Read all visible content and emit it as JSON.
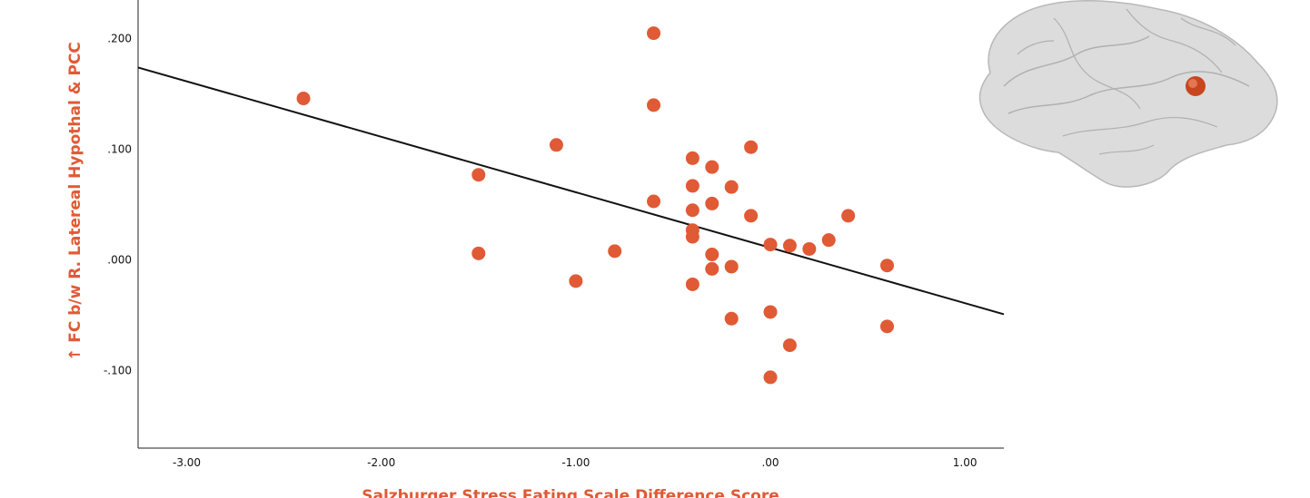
{
  "chart_data": {
    "type": "scatter",
    "xlabel": "Salzburger Stress Eating Scale Difference Score",
    "ylabel": "↑ FC b/w R. Latereal Hypothal & PCC",
    "xlim": [
      -3.25,
      1.2
    ],
    "ylim": [
      -0.17,
      0.235
    ],
    "x_ticks": [
      -3.0,
      -2.0,
      -1.0,
      0.0,
      1.0
    ],
    "x_tick_labels": [
      "-3.00",
      "-2.00",
      "-1.00",
      ".00",
      "1.00"
    ],
    "y_ticks": [
      -0.1,
      0.0,
      0.1,
      0.2
    ],
    "y_tick_labels": [
      "-.100",
      ".000",
      ".100",
      ".200"
    ],
    "grid": false,
    "points": [
      {
        "x": -2.4,
        "y": 0.146
      },
      {
        "x": -1.5,
        "y": 0.077
      },
      {
        "x": -1.5,
        "y": 0.006
      },
      {
        "x": -1.1,
        "y": 0.104
      },
      {
        "x": -1.0,
        "y": -0.019
      },
      {
        "x": -0.8,
        "y": 0.008
      },
      {
        "x": -0.6,
        "y": 0.205
      },
      {
        "x": -0.6,
        "y": 0.14
      },
      {
        "x": -0.6,
        "y": 0.053
      },
      {
        "x": -0.4,
        "y": 0.092
      },
      {
        "x": -0.4,
        "y": 0.067
      },
      {
        "x": -0.4,
        "y": 0.045
      },
      {
        "x": -0.4,
        "y": 0.027
      },
      {
        "x": -0.4,
        "y": 0.021
      },
      {
        "x": -0.4,
        "y": -0.022
      },
      {
        "x": -0.3,
        "y": 0.084
      },
      {
        "x": -0.3,
        "y": 0.051
      },
      {
        "x": -0.3,
        "y": 0.005
      },
      {
        "x": -0.3,
        "y": -0.008
      },
      {
        "x": -0.2,
        "y": 0.066
      },
      {
        "x": -0.2,
        "y": -0.006
      },
      {
        "x": -0.2,
        "y": -0.053
      },
      {
        "x": -0.1,
        "y": 0.102
      },
      {
        "x": -0.1,
        "y": 0.04
      },
      {
        "x": 0.0,
        "y": 0.014
      },
      {
        "x": 0.0,
        "y": -0.047
      },
      {
        "x": 0.0,
        "y": -0.106
      },
      {
        "x": 0.1,
        "y": 0.013
      },
      {
        "x": 0.1,
        "y": -0.077
      },
      {
        "x": 0.2,
        "y": 0.01
      },
      {
        "x": 0.3,
        "y": 0.018
      },
      {
        "x": 0.4,
        "y": 0.04
      },
      {
        "x": 0.6,
        "y": -0.005
      },
      {
        "x": 0.6,
        "y": -0.06
      }
    ],
    "fit_line": {
      "x": [
        -3.25,
        1.2
      ],
      "y": [
        0.174,
        -0.049
      ]
    },
    "colors": {
      "points": "#e05a35",
      "axis_titles": "#e05a35",
      "fit_line": "#111111"
    }
  },
  "inset": {
    "icon": "brain-lateral-view-icon",
    "marker_color": "#c8461f"
  }
}
